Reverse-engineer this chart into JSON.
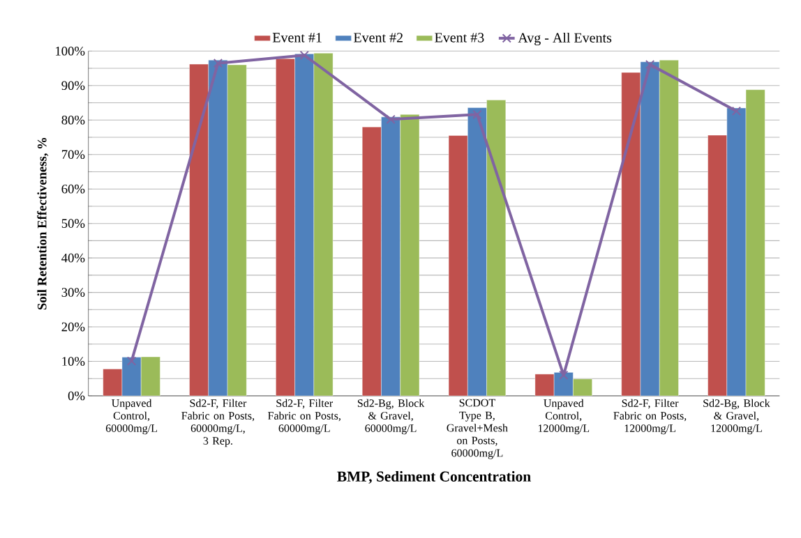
{
  "chart_data": {
    "type": "bar",
    "xlabel": "BMP, Sediment Concentration",
    "ylabel": "Soil Retention Effectiveness, %",
    "categories": [
      "Unpaved Control, 60000mg/L",
      "Sd2-F, Filter Fabric on Posts, 60000mg/L, 3 Rep.",
      "Sd2-F, Filter Fabric on Posts, 60000mg/L",
      "Sd2-Bg, Block & Gravel, 60000mg/L",
      "SCDOT Type B, Gravel+Mesh on Posts, 60000mg/L",
      "Unpaved Control, 12000mg/L",
      "Sd2-F, Filter Fabric on Posts, 12000mg/L",
      "Sd2-Bg, Block & Gravel, 12000mg/L"
    ],
    "series": [
      {
        "name": "Event #1",
        "color": "#c0504d",
        "values": [
          7.8,
          96.2,
          97.8,
          78.0,
          75.5,
          6.3,
          93.8,
          75.6
        ]
      },
      {
        "name": "Event #2",
        "color": "#4f81bd",
        "values": [
          11.2,
          97.4,
          99.2,
          80.9,
          83.6,
          6.8,
          96.9,
          83.5
        ]
      },
      {
        "name": "Event #3",
        "color": "#9bbb59",
        "values": [
          11.3,
          96.0,
          99.4,
          81.6,
          85.8,
          4.9,
          97.4,
          88.8
        ]
      },
      {
        "name": "Avg - All Events",
        "color": "#8064a2",
        "type": "line",
        "marker": "cross",
        "values": [
          10.1,
          96.5,
          98.8,
          80.2,
          81.6,
          6.0,
          96.1,
          82.6
        ]
      }
    ],
    "ylim": [
      0,
      100
    ],
    "yticks": [
      {
        "value": 0,
        "label": "0%"
      },
      {
        "value": 5,
        "label": null
      },
      {
        "value": 10,
        "label": "10%"
      },
      {
        "value": 15,
        "label": null
      },
      {
        "value": 20,
        "label": "20%"
      },
      {
        "value": 25,
        "label": null
      },
      {
        "value": 30,
        "label": "30%"
      },
      {
        "value": 35,
        "label": null
      },
      {
        "value": 40,
        "label": "40%"
      },
      {
        "value": 45,
        "label": null
      },
      {
        "value": 50,
        "label": "50%"
      },
      {
        "value": 55,
        "label": null
      },
      {
        "value": 60,
        "label": "60%"
      },
      {
        "value": 65,
        "label": null
      },
      {
        "value": 70,
        "label": "70%"
      },
      {
        "value": 75,
        "label": null
      },
      {
        "value": 80,
        "label": "80%"
      },
      {
        "value": 85,
        "label": null
      },
      {
        "value": 90,
        "label": "90%"
      },
      {
        "value": 95,
        "label": null
      },
      {
        "value": 100,
        "label": "100%"
      }
    ],
    "grid": "y",
    "legend": "top"
  }
}
